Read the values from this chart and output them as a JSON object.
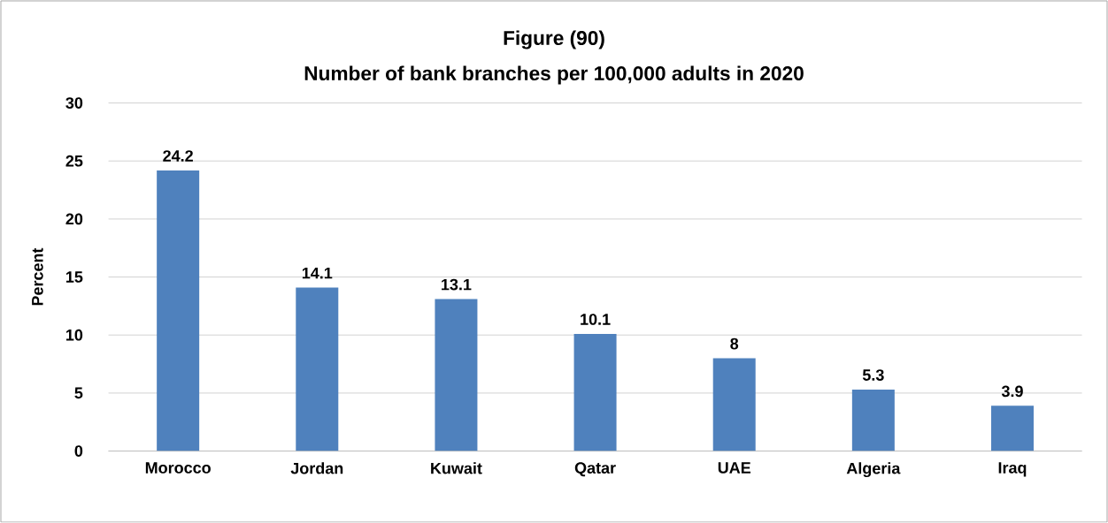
{
  "chart_data": {
    "type": "bar",
    "title": "Figure (90)",
    "subtitle": "Number of bank branches per 100,000 adults in 2020",
    "ylabel": "Percent",
    "categories": [
      "Morocco",
      "Jordan",
      "Kuwait",
      "Qatar",
      "UAE",
      "Algeria",
      "Iraq"
    ],
    "values": [
      24.2,
      14.1,
      13.1,
      10.1,
      8,
      5.3,
      3.9
    ],
    "color": "#4f81bd",
    "ylim": [
      0,
      30
    ],
    "yticks": [
      0,
      5,
      10,
      15,
      20,
      25,
      30
    ],
    "grid": "y",
    "data_labels": true
  }
}
